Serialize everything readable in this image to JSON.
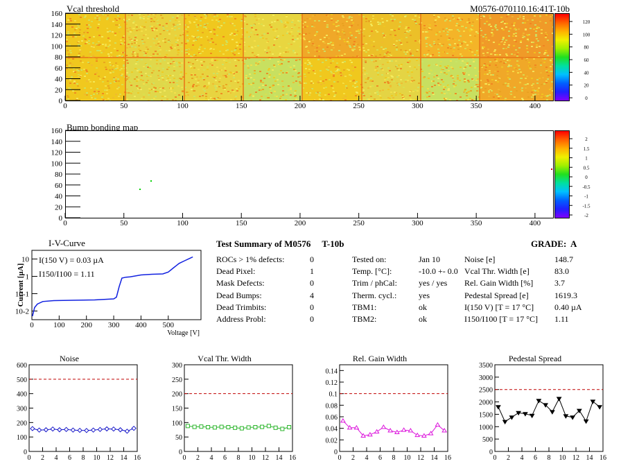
{
  "header": {
    "map_title": "Vcal threshold",
    "module_id": "M0576-070110.16:41T-10b",
    "bump_title": "Bump bonding map"
  },
  "maps": {
    "x_ticks": [
      "0",
      "50",
      "100",
      "150",
      "200",
      "250",
      "300",
      "350",
      "400"
    ],
    "y_ticks": [
      "0",
      "20",
      "40",
      "60",
      "80",
      "100",
      "120",
      "140",
      "160"
    ],
    "vcal_scale_ticks": [
      "120",
      "100",
      "80",
      "60",
      "40",
      "20",
      "0"
    ],
    "bump_scale_ticks": [
      "2",
      "1.5",
      "1",
      "0.5",
      "0",
      "-0.5",
      "-1",
      "-1.5",
      "-2"
    ]
  },
  "iv": {
    "title": "I-V-Curve",
    "ylabel": "Current [µA]",
    "xlabel": "Voltage [V]",
    "ann1": "I(150 V) = 0.03 µA",
    "ann2": "I150/I100 =  1.11",
    "x_ticks": [
      "0",
      "100",
      "200",
      "300",
      "400",
      "500"
    ],
    "y_ticks": [
      "10",
      "1",
      "10-1",
      "10-2"
    ]
  },
  "summary": {
    "title": "Test Summary of M0576     T-10b",
    "grade": "GRADE:  A",
    "left": [
      {
        "label": "ROCs > 1% defects:",
        "value": "0"
      },
      {
        "label": "Dead Pixel:",
        "value": "1"
      },
      {
        "label": "Mask Defects:",
        "value": "0"
      },
      {
        "label": "Dead Bumps:",
        "value": "4"
      },
      {
        "label": "Dead Trimbits:",
        "value": "0"
      },
      {
        "label": "Address Probl:",
        "value": "0"
      }
    ],
    "mid": [
      {
        "label": "Tested on:",
        "value": "Jan 10"
      },
      {
        "label": "Temp. [°C]:",
        "value": "-10.0 +- 0.0"
      },
      {
        "label": "Trim / phCal:",
        "value": "yes / yes"
      },
      {
        "label": "Therm. cycl.:",
        "value": "yes"
      },
      {
        "label": "TBM1:",
        "value": "ok"
      },
      {
        "label": "TBM2:",
        "value": "ok"
      }
    ],
    "right": [
      {
        "label": "Noise [e]",
        "value": "148.7"
      },
      {
        "label": "Vcal Thr. Width [e]",
        "value": "83.0"
      },
      {
        "label": "Rel. Gain Width [%]",
        "value": "3.7"
      },
      {
        "label": "Pedestal Spread [e]",
        "value": "1619.3"
      },
      {
        "label": "I(150 V) [T = 17 °C]",
        "value": "0.40 µA"
      },
      {
        "label": "I150/I100  [T = 17 °C]",
        "value": "1.11"
      }
    ]
  },
  "chart_data": [
    {
      "type": "line",
      "title": "Noise",
      "x": [
        0,
        1,
        2,
        3,
        4,
        5,
        6,
        7,
        8,
        9,
        10,
        11,
        12,
        13,
        14,
        15
      ],
      "values": [
        158,
        148,
        150,
        155,
        150,
        152,
        148,
        146,
        145,
        148,
        152,
        156,
        155,
        150,
        140,
        160
      ],
      "limit": 500,
      "ylim": [
        0,
        600
      ],
      "xlim": [
        0,
        16
      ],
      "y_ticks": [
        "0",
        "100",
        "200",
        "300",
        "400",
        "500",
        "600"
      ],
      "x_ticks": [
        "0",
        "2",
        "4",
        "6",
        "8",
        "10",
        "12",
        "14",
        "16"
      ],
      "color": "#1414c8",
      "marker": "diamond"
    },
    {
      "type": "line",
      "title": "Vcal Thr. Width",
      "x": [
        0,
        1,
        2,
        3,
        4,
        5,
        6,
        7,
        8,
        9,
        10,
        11,
        12,
        13,
        14,
        15
      ],
      "values": [
        88,
        85,
        86,
        84,
        83,
        85,
        84,
        82,
        80,
        83,
        84,
        85,
        88,
        82,
        78,
        84
      ],
      "limit": 200,
      "ylim": [
        0,
        300
      ],
      "xlim": [
        0,
        16
      ],
      "y_ticks": [
        "0",
        "50",
        "100",
        "150",
        "200",
        "250",
        "300"
      ],
      "x_ticks": [
        "0",
        "2",
        "4",
        "6",
        "8",
        "10",
        "12",
        "14",
        "16"
      ],
      "color": "#28b428",
      "marker": "square"
    },
    {
      "type": "line",
      "title": "Rel. Gain Width",
      "x": [
        0,
        1,
        2,
        3,
        4,
        5,
        6,
        7,
        8,
        9,
        10,
        11,
        12,
        13,
        14,
        15
      ],
      "values": [
        0.053,
        0.041,
        0.041,
        0.027,
        0.029,
        0.034,
        0.042,
        0.036,
        0.033,
        0.037,
        0.036,
        0.028,
        0.027,
        0.031,
        0.046,
        0.036
      ],
      "limit": 0.1,
      "ylim": [
        0,
        0.15
      ],
      "xlim": [
        0,
        16
      ],
      "y_ticks": [
        "0",
        "0.02",
        "0.04",
        "0.06",
        "0.08",
        "0.1",
        "0.12",
        "0.14"
      ],
      "x_ticks": [
        "0",
        "2",
        "4",
        "6",
        "8",
        "10",
        "12",
        "14",
        "16"
      ],
      "color": "#dc14dc",
      "marker": "triangle"
    },
    {
      "type": "line",
      "title": "Pedestal Spread",
      "x": [
        0,
        1,
        2,
        3,
        4,
        5,
        6,
        7,
        8,
        9,
        10,
        11,
        12,
        13,
        14,
        15
      ],
      "values": [
        1800,
        1200,
        1380,
        1560,
        1520,
        1450,
        2050,
        1880,
        1600,
        2130,
        1430,
        1380,
        1650,
        1220,
        2020,
        1800
      ],
      "limit": 2500,
      "ylim": [
        0,
        3500
      ],
      "xlim": [
        0,
        16
      ],
      "y_ticks": [
        "0",
        "500",
        "1000",
        "1500",
        "2000",
        "2500",
        "3000",
        "3500"
      ],
      "x_ticks": [
        "0",
        "2",
        "4",
        "6",
        "8",
        "10",
        "12",
        "14",
        "16"
      ],
      "color": "#000000",
      "marker": "triangle-down"
    }
  ]
}
